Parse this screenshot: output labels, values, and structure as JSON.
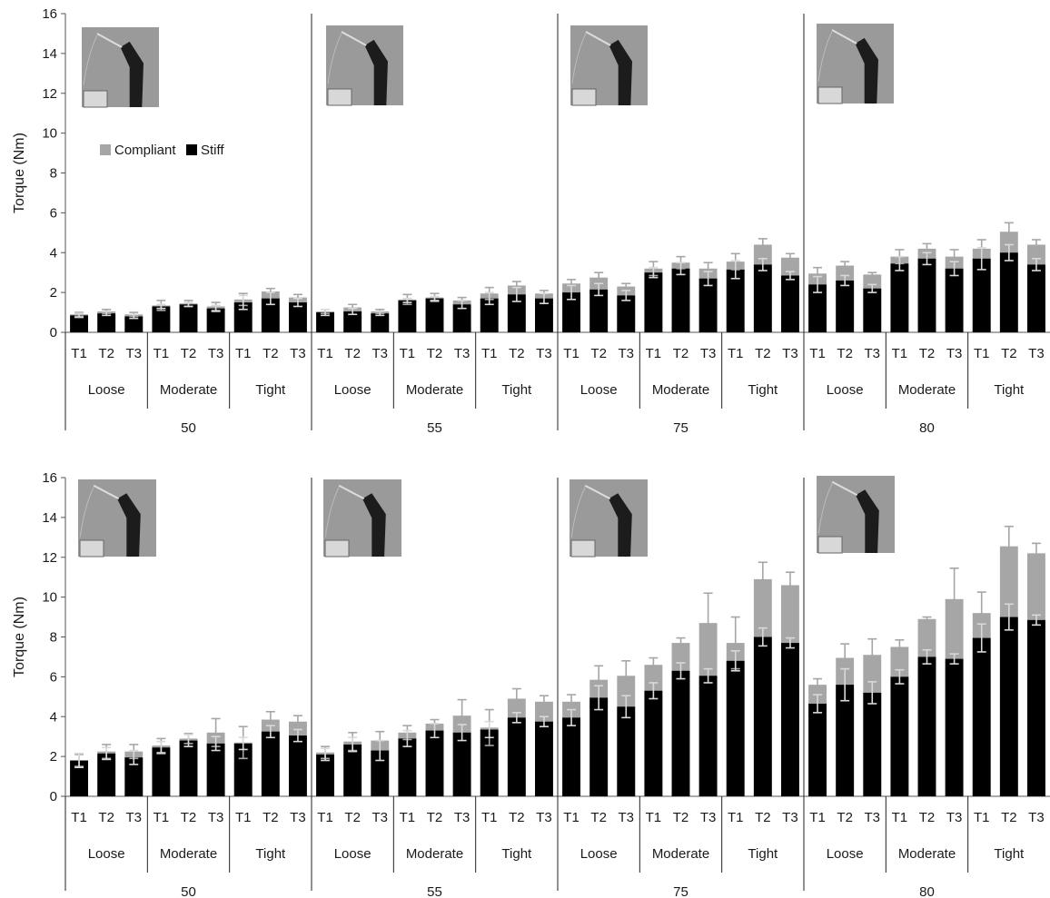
{
  "colors": {
    "compliant": "#a6a6a6",
    "stiff": "#000000",
    "error_bar_compliant": "#a6a6a6",
    "error_bar_stiff": "#d9d9d9",
    "photo_bg": "#9a9a9a",
    "photo_robot": "#1c1c1c"
  },
  "chart_data": [
    {
      "type": "bar",
      "ylabel": "Torque (Nm)",
      "ylim": [
        0,
        16
      ],
      "yticks": [
        0,
        2,
        4,
        6,
        8,
        10,
        12,
        14,
        16
      ],
      "legend": {
        "placement": "top-left",
        "entries": [
          "Compliant",
          "Stiff"
        ]
      },
      "categories": {
        "trials": [
          "T1",
          "T2",
          "T3"
        ],
        "tightness": [
          "Loose",
          "Moderate",
          "Tight"
        ],
        "groups": [
          "50",
          "55",
          "75",
          "80"
        ]
      },
      "series": [
        {
          "name": "Compliant",
          "values": [
            0.9,
            1.05,
            0.9,
            1.35,
            1.45,
            1.3,
            1.65,
            2.05,
            1.75,
            1.05,
            1.25,
            1.05,
            1.65,
            1.75,
            1.6,
            1.95,
            2.35,
            1.95,
            2.45,
            2.75,
            2.3,
            3.2,
            3.5,
            3.2,
            3.55,
            4.4,
            3.75,
            2.95,
            3.35,
            2.9,
            3.8,
            4.2,
            3.8,
            4.2,
            5.05,
            4.4
          ],
          "errors": [
            0.1,
            0.1,
            0.1,
            0.25,
            0.15,
            0.2,
            0.3,
            0.15,
            0.15,
            0.1,
            0.15,
            0.1,
            0.25,
            0.2,
            0.15,
            0.3,
            0.2,
            0.15,
            0.2,
            0.25,
            0.15,
            0.35,
            0.3,
            0.3,
            0.4,
            0.3,
            0.2,
            0.3,
            0.2,
            0.1,
            0.35,
            0.25,
            0.35,
            0.45,
            0.45,
            0.25
          ]
        },
        {
          "name": "Stiff",
          "values": [
            0.85,
            0.95,
            0.8,
            1.3,
            1.4,
            1.2,
            1.5,
            1.7,
            1.5,
            1.0,
            1.05,
            0.95,
            1.6,
            1.7,
            1.4,
            1.7,
            1.9,
            1.7,
            2.0,
            2.15,
            1.85,
            3.0,
            3.2,
            2.7,
            3.15,
            3.4,
            2.85,
            2.4,
            2.6,
            2.2,
            3.45,
            3.7,
            3.2,
            3.7,
            4.0,
            3.4
          ],
          "errors": [
            0.1,
            0.1,
            0.1,
            0.1,
            0.1,
            0.15,
            0.35,
            0.3,
            0.2,
            0.15,
            0.15,
            0.1,
            0.1,
            0.1,
            0.2,
            0.3,
            0.35,
            0.25,
            0.35,
            0.3,
            0.25,
            0.25,
            0.3,
            0.35,
            0.45,
            0.3,
            0.2,
            0.4,
            0.25,
            0.2,
            0.35,
            0.3,
            0.35,
            0.55,
            0.4,
            0.3
          ]
        }
      ]
    },
    {
      "type": "bar",
      "ylabel": "Torque (Nm)",
      "ylim": [
        0,
        16
      ],
      "yticks": [
        0,
        2,
        4,
        6,
        8,
        10,
        12,
        14,
        16
      ],
      "categories": {
        "trials": [
          "T1",
          "T2",
          "T3"
        ],
        "tightness": [
          "Loose",
          "Moderate",
          "Tight"
        ],
        "groups": [
          "50",
          "55",
          "75",
          "80"
        ]
      },
      "series": [
        {
          "name": "Compliant",
          "values": [
            1.8,
            2.25,
            2.25,
            2.55,
            2.9,
            3.2,
            2.7,
            3.85,
            3.75,
            2.2,
            2.75,
            2.8,
            3.2,
            3.65,
            4.05,
            3.45,
            4.9,
            4.75,
            4.75,
            5.85,
            6.05,
            6.6,
            7.7,
            8.7,
            7.7,
            10.9,
            10.6,
            5.6,
            6.95,
            7.1,
            7.5,
            8.9,
            9.9,
            9.2,
            12.55,
            12.2
          ],
          "errors": [
            0.3,
            0.35,
            0.35,
            0.35,
            0.25,
            0.7,
            0.8,
            0.4,
            0.3,
            0.3,
            0.45,
            0.45,
            0.35,
            0.2,
            0.8,
            0.9,
            0.5,
            0.3,
            0.35,
            0.7,
            0.75,
            0.35,
            0.25,
            1.5,
            1.3,
            0.85,
            0.65,
            0.3,
            0.7,
            0.8,
            0.35,
            0.1,
            1.55,
            1.05,
            1.0,
            0.5
          ]
        },
        {
          "name": "Stiff",
          "values": [
            1.8,
            2.15,
            1.95,
            2.45,
            2.8,
            2.65,
            2.65,
            3.25,
            3.05,
            2.1,
            2.6,
            2.3,
            2.9,
            3.3,
            3.2,
            3.35,
            3.95,
            3.75,
            3.95,
            4.95,
            4.5,
            5.3,
            6.3,
            6.05,
            6.8,
            8.0,
            7.7,
            4.65,
            5.6,
            5.2,
            6.0,
            7.0,
            6.9,
            7.95,
            9.0,
            8.85
          ],
          "errors": [
            0.35,
            0.3,
            0.35,
            0.3,
            0.3,
            0.35,
            0.3,
            0.3,
            0.3,
            0.3,
            0.35,
            0.5,
            0.4,
            0.35,
            0.4,
            0.4,
            0.25,
            0.25,
            0.4,
            0.6,
            0.55,
            0.4,
            0.4,
            0.35,
            0.5,
            0.45,
            0.25,
            0.45,
            0.8,
            0.55,
            0.35,
            0.35,
            0.25,
            0.7,
            0.65,
            0.25
          ]
        }
      ]
    }
  ]
}
